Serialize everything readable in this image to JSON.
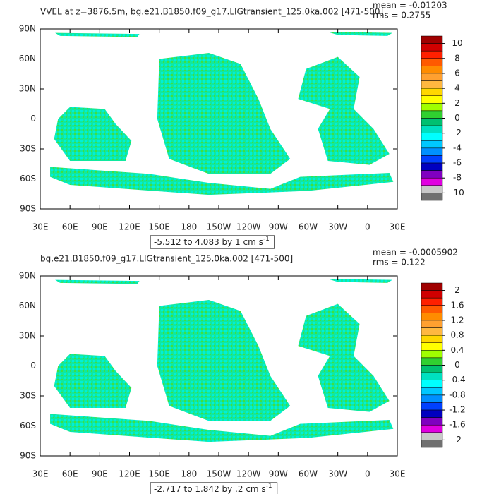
{
  "chart_data": [
    {
      "type": "contour-map",
      "title": "VVEL at z=3876.5m, bg.e21.B1850.f09_g17.LIGtransient_125.0ka.002 [471-500]",
      "mean_label": "mean = -0.01203",
      "rms_label": "rms = 0.2755",
      "range_label": "-5.512 to 4.083 by 1 cm s",
      "range_unit_exponent": "-1",
      "xlim": [
        30,
        390
      ],
      "xticks": [
        {
          "value": 30,
          "label": "30E"
        },
        {
          "value": 60,
          "label": "60E"
        },
        {
          "value": 90,
          "label": "90E"
        },
        {
          "value": 120,
          "label": "120E"
        },
        {
          "value": 150,
          "label": "150E"
        },
        180,
        {
          "value": 210,
          "label": "150W"
        },
        {
          "value": 240,
          "label": "120W"
        },
        {
          "value": 270,
          "label": "90W"
        },
        {
          "value": 300,
          "label": "60W"
        },
        {
          "value": 330,
          "label": "30W"
        },
        {
          "value": 360,
          "label": "0"
        },
        {
          "value": 390,
          "label": "30E"
        }
      ],
      "ylim": [
        -90,
        90
      ],
      "yticks": [
        {
          "value": -90,
          "label": "90S"
        },
        {
          "value": -60,
          "label": "60S"
        },
        {
          "value": -30,
          "label": "30S"
        },
        0,
        {
          "value": 30,
          "label": "30N"
        },
        {
          "value": 60,
          "label": "60N"
        },
        {
          "value": 90,
          "label": "90N"
        }
      ],
      "colorbar": {
        "colors": [
          "#a00000",
          "#d00000",
          "#ff2000",
          "#ff5a00",
          "#ff8c00",
          "#ffa030",
          "#ffb840",
          "#ffd700",
          "#ffff00",
          "#a0ff00",
          "#30d030",
          "#00c070",
          "#00e0c0",
          "#00ffff",
          "#00c8ff",
          "#0090ff",
          "#0040ff",
          "#0000c0",
          "#8000c0",
          "#e000e0",
          "#c8c8c8",
          "#707070"
        ],
        "ticks": [
          10,
          8,
          6,
          4,
          2,
          0,
          -2,
          -4,
          -6,
          -8,
          -10
        ]
      }
    },
    {
      "type": "contour-map",
      "title": "bg.e21.B1850.f09_g17.LIGtransient_125.0ka.002 [471-500]",
      "mean_label": "mean = -0.0005902",
      "rms_label": "rms = 0.122",
      "range_label": "-2.717 to 1.842 by .2 cm s",
      "range_unit_exponent": "-1",
      "xlim": [
        30,
        390
      ],
      "xticks": [
        {
          "value": 30,
          "label": "30E"
        },
        {
          "value": 60,
          "label": "60E"
        },
        {
          "value": 90,
          "label": "90E"
        },
        {
          "value": 120,
          "label": "120E"
        },
        {
          "value": 150,
          "label": "150E"
        },
        180,
        {
          "value": 210,
          "label": "150W"
        },
        {
          "value": 240,
          "label": "120W"
        },
        {
          "value": 270,
          "label": "90W"
        },
        {
          "value": 300,
          "label": "60W"
        },
        {
          "value": 330,
          "label": "30W"
        },
        {
          "value": 360,
          "label": "0"
        },
        {
          "value": 390,
          "label": "30E"
        }
      ],
      "ylim": [
        -90,
        90
      ],
      "yticks": [
        {
          "value": -90,
          "label": "90S"
        },
        {
          "value": -60,
          "label": "60S"
        },
        {
          "value": -30,
          "label": "30S"
        },
        0,
        {
          "value": 30,
          "label": "30N"
        },
        {
          "value": 60,
          "label": "60N"
        },
        {
          "value": 90,
          "label": "90N"
        }
      ],
      "colorbar": {
        "colors": [
          "#a00000",
          "#d00000",
          "#ff2000",
          "#ff5a00",
          "#ff8c00",
          "#ffa030",
          "#ffb840",
          "#ffd700",
          "#ffff00",
          "#a0ff00",
          "#30d030",
          "#00c070",
          "#00e0c0",
          "#00ffff",
          "#00c8ff",
          "#0090ff",
          "#0040ff",
          "#0000c0",
          "#8000c0",
          "#e000e0",
          "#c8c8c8",
          "#707070"
        ],
        "ticks": [
          2,
          1.6,
          1.2,
          0.8,
          0.4,
          0,
          -0.4,
          -0.8,
          -1.2,
          -1.6,
          -2
        ]
      }
    }
  ]
}
